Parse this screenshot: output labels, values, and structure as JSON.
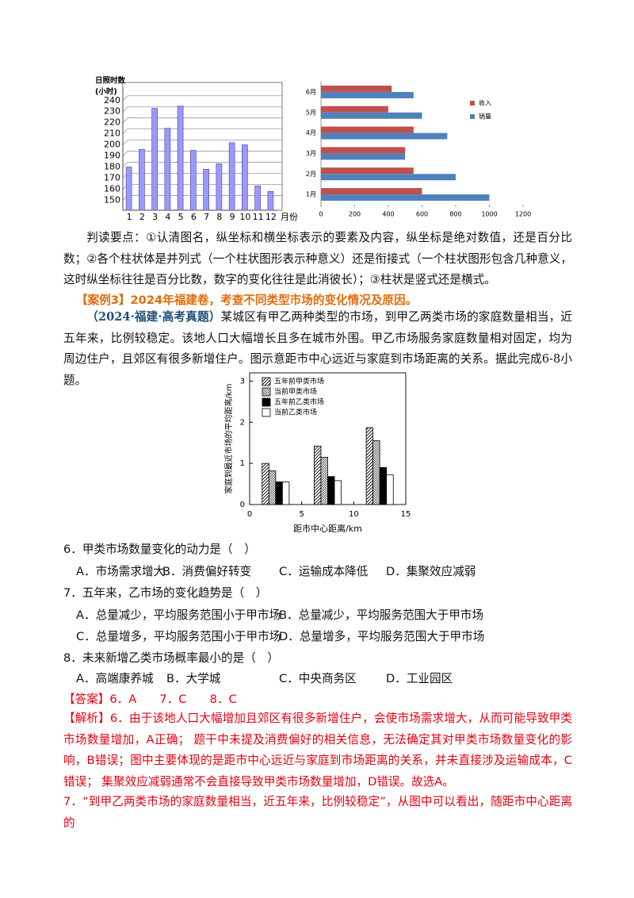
{
  "chart_data": [
    {
      "type": "bar",
      "y_label": "日照时数",
      "y_unit": "(小时)",
      "x_label": "月份",
      "categories": [
        "1",
        "2",
        "3",
        "4",
        "5",
        "6",
        "7",
        "8",
        "9",
        "10",
        "11",
        "12"
      ],
      "values": [
        180,
        196,
        233,
        215,
        235,
        195,
        178,
        183,
        202,
        200,
        163,
        158
      ],
      "color": "#9999ff",
      "ylim": [
        141,
        252
      ],
      "yticks": [
        150,
        160,
        170,
        180,
        190,
        200,
        210,
        220,
        230,
        240
      ],
      "grid": true
    },
    {
      "type": "hbar",
      "categories": [
        "1月",
        "2月",
        "3月",
        "4月",
        "5月",
        "6月"
      ],
      "series": [
        {
          "name": "收入",
          "color": "#c0504d",
          "values": [
            600,
            550,
            500,
            550,
            400,
            420
          ]
        },
        {
          "name": "销量",
          "color": "#4f81bd",
          "values": [
            1000,
            800,
            500,
            750,
            600,
            550
          ]
        }
      ],
      "xlim": [
        0,
        1200
      ],
      "xticks": [
        0,
        200,
        400,
        600,
        800,
        1000,
        1200
      ],
      "legend": "upper right"
    },
    {
      "type": "grouped-bar",
      "x_label": "距市中心距离/km",
      "y_label": "家庭到最近市场的平均距离/km",
      "x": [
        2.5,
        7.5,
        12.5
      ],
      "series": [
        {
          "name": "五年前甲类市场",
          "pattern": "diagonal",
          "color": "#000000",
          "values": [
            1.0,
            1.42,
            1.87
          ]
        },
        {
          "name": "当前甲类市场",
          "pattern": "crosshatch",
          "color": "#000000",
          "values": [
            0.82,
            1.15,
            1.55
          ]
        },
        {
          "name": "五年前乙类市场",
          "pattern": "solid",
          "color": "#000000",
          "values": [
            0.55,
            0.68,
            0.9
          ]
        },
        {
          "name": "当前乙类市场",
          "pattern": "none",
          "color": "#000000",
          "values": [
            0.55,
            0.58,
            0.72
          ]
        }
      ],
      "xlim": [
        0,
        15
      ],
      "xticks": [
        0,
        5,
        10,
        15
      ],
      "ylim": [
        0,
        3.2
      ],
      "yticks": [
        0,
        1,
        2,
        3
      ],
      "legend": "upper left"
    }
  ],
  "text": {
    "reading_points": "判读要点：①认清图名，纵坐标和横坐标表示的要素及内容，纵坐标是绝对数值，还是百分比数；②各个柱状体是并列式（一个柱状图形表示种意义）还是衔接式（一个柱状图形包含几种意义，这时纵坐标往往是百分比数，数字的变化往往是此消彼长）；③柱状是竖式还是横式。",
    "case_heading": "【案例3】2024年福建卷，考查不同类型市场的变化情况及原因。",
    "source": "（2024·福建·高考真题）",
    "intro": "某城区有甲乙两种类型的市场，到甲乙两类市场的家庭数量相当，近五年来，比例较稳定。该地人口大幅增长且多在城市外围。甲乙市场服务家庭数量相对固定，均为周边住户，且郊区有很多新增住户。图示意距市中心远近与家庭到市场距离的关系。据此完成6-8小题。",
    "questions": [
      {
        "stem": "6．甲类市场数量变化的动力是（　）",
        "options": [
          "A．市场需求增大",
          "B．消费偏好转变",
          "C．运输成本降低",
          "D．集聚效应减弱"
        ]
      },
      {
        "stem": "7．五年来，乙市场的变化趋势是（　）",
        "options": [
          "A．总量减少，平均服务范围小于甲市场",
          "B．总量减少，平均服务范围大于甲市场",
          "C．总量增多，平均服务范围小于甲市场",
          "D．总量增多，平均服务范围大于甲市场"
        ]
      },
      {
        "stem": "8．未来新增乙类市场概率最小的是（　）",
        "options": [
          "A．高端康养城",
          "B．大学城",
          "C．中央商务区",
          "D．工业园区"
        ]
      }
    ],
    "answer": "【答案】6．A　　7．C　　8．C",
    "analysis": [
      "【解析】6．由于该地人口大幅增加且郊区有很多新增住户，会使市场需求增大，从而可能导致甲类市场数量增加，A正确； 题干中未提及消费偏好的相关信息，无法确定其对甲类市场数量变化的影响，B错误；图中主要体现的是距市中心远近与家庭到市场距离的关系，并未直接涉及运输成本，C错误； 集聚效应减弱通常不会直接导致甲类市场数量增加，D错误。故选A。",
      "7．“到甲乙两类市场的家庭数量相当，近五年来，比例较稳定”，从图中可以看出，随距市中心距离的"
    ]
  }
}
